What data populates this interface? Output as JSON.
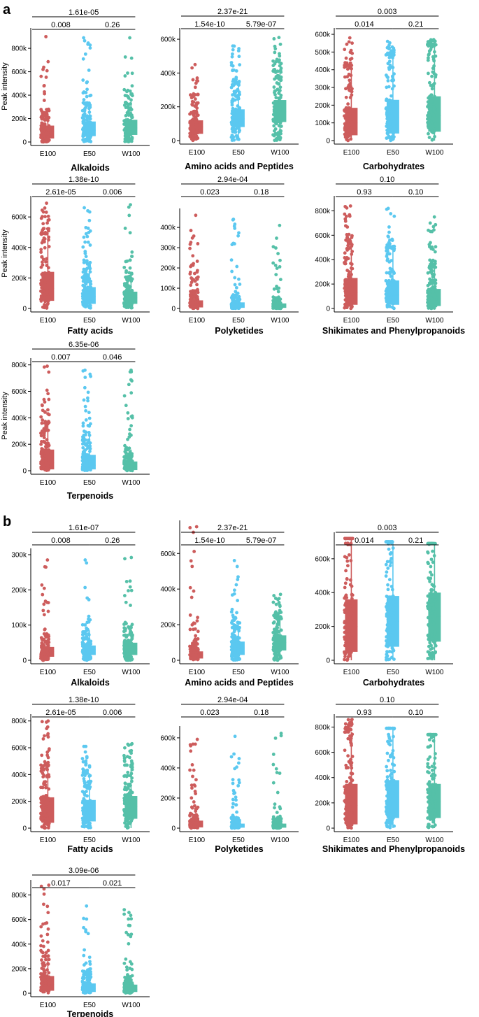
{
  "colors": {
    "E100": "#cd5c5c",
    "E50": "#5bc8f0",
    "W100": "#55c0a8"
  },
  "section_labels": [
    "a",
    "b"
  ],
  "chart_data": [
    {
      "type": "box",
      "panel": "a",
      "title": "Alkaloids",
      "ylabel": "Peak intensity",
      "categories": [
        "E100",
        "E50",
        "W100"
      ],
      "ylim": [
        0,
        950000
      ],
      "yticks": [
        0,
        200000,
        400000,
        600000,
        800000
      ],
      "ytick_labels": [
        "0",
        "200k",
        "400k",
        "600k",
        "800k"
      ],
      "boxes": [
        {
          "q1": 30000,
          "median": 90000,
          "q3": 140000,
          "whisker_high": 250000,
          "max": 900000
        },
        {
          "q1": 50000,
          "median": 100000,
          "q3": 175000,
          "whisker_high": 330000,
          "max": 890000
        },
        {
          "q1": 60000,
          "median": 120000,
          "q3": 190000,
          "whisker_high": 360000,
          "max": 890000
        }
      ],
      "comparisons": [
        {
          "pair": [
            "E100",
            "W100"
          ],
          "p": "1.61e-05"
        },
        {
          "pair": [
            "E100",
            "E50"
          ],
          "p": "0.008"
        },
        {
          "pair": [
            "E50",
            "W100"
          ],
          "p": "0.26"
        }
      ]
    },
    {
      "type": "box",
      "panel": "a",
      "title": "Amino acids and Peptides",
      "ylabel": "",
      "categories": [
        "E100",
        "E50",
        "W100"
      ],
      "ylim": [
        0,
        650000
      ],
      "yticks": [
        0,
        200000,
        400000,
        600000
      ],
      "ytick_labels": [
        "0",
        "200k",
        "400k",
        "600k"
      ],
      "boxes": [
        {
          "q1": 40000,
          "median": 80000,
          "q3": 120000,
          "whisker_high": 230000,
          "max": 450000
        },
        {
          "q1": 80000,
          "median": 130000,
          "q3": 185000,
          "whisker_high": 340000,
          "max": 560000
        },
        {
          "q1": 110000,
          "median": 170000,
          "q3": 240000,
          "whisker_high": 410000,
          "max": 610000
        }
      ],
      "comparisons": [
        {
          "pair": [
            "E100",
            "W100"
          ],
          "p": "2.37e-21"
        },
        {
          "pair": [
            "E100",
            "E50"
          ],
          "p": "1.54e-10"
        },
        {
          "pair": [
            "E50",
            "W100"
          ],
          "p": "5.79e-07"
        }
      ]
    },
    {
      "type": "box",
      "panel": "a",
      "title": "Carbohydrates",
      "ylabel": "",
      "categories": [
        "E100",
        "E50",
        "W100"
      ],
      "ylim": [
        0,
        620000
      ],
      "yticks": [
        0,
        100000,
        200000,
        300000,
        400000,
        500000,
        600000
      ],
      "ytick_labels": [
        "0",
        "100k",
        "200k",
        "300k",
        "400k",
        "500k",
        "600k"
      ],
      "boxes": [
        {
          "q1": 30000,
          "median": 100000,
          "q3": 185000,
          "whisker_high": 420000,
          "max": 580000
        },
        {
          "q1": 40000,
          "median": 130000,
          "q3": 230000,
          "whisker_high": 480000,
          "max": 560000
        },
        {
          "q1": 50000,
          "median": 140000,
          "q3": 250000,
          "whisker_high": 540000,
          "max": 570000
        }
      ],
      "comparisons": [
        {
          "pair": [
            "E100",
            "W100"
          ],
          "p": "0.003"
        },
        {
          "pair": [
            "E100",
            "E50"
          ],
          "p": "0.014"
        },
        {
          "pair": [
            "E50",
            "W100"
          ],
          "p": "0.21"
        }
      ]
    },
    {
      "type": "box",
      "panel": "a",
      "title": "Fatty acids",
      "ylabel": "Peak intensity",
      "categories": [
        "E100",
        "E50",
        "W100"
      ],
      "ylim": [
        0,
        720000
      ],
      "yticks": [
        0,
        200000,
        400000,
        600000
      ],
      "ytick_labels": [
        "0",
        "200k",
        "400k",
        "600k"
      ],
      "boxes": [
        {
          "q1": 50000,
          "median": 130000,
          "q3": 240000,
          "whisker_high": 490000,
          "max": 690000
        },
        {
          "q1": 30000,
          "median": 80000,
          "q3": 140000,
          "whisker_high": 300000,
          "max": 660000
        },
        {
          "q1": 30000,
          "median": 70000,
          "q3": 110000,
          "whisker_high": 230000,
          "max": 680000
        }
      ],
      "comparisons": [
        {
          "pair": [
            "E100",
            "W100"
          ],
          "p": "1.38e-10"
        },
        {
          "pair": [
            "E100",
            "E50"
          ],
          "p": "2.61e-05"
        },
        {
          "pair": [
            "E50",
            "W100"
          ],
          "p": "0.006"
        }
      ]
    },
    {
      "type": "box",
      "panel": "a",
      "title": "Polyketides",
      "ylabel": "",
      "categories": [
        "E100",
        "E50",
        "W100"
      ],
      "ylim": [
        0,
        480000
      ],
      "yticks": [
        0,
        100000,
        200000,
        300000,
        400000
      ],
      "ytick_labels": [
        "0",
        "100k",
        "200k",
        "300k",
        "400k"
      ],
      "boxes": [
        {
          "q1": 5000,
          "median": 20000,
          "q3": 40000,
          "whisker_high": 90000,
          "max": 460000
        },
        {
          "q1": 3000,
          "median": 12000,
          "q3": 30000,
          "whisker_high": 60000,
          "max": 440000
        },
        {
          "q1": 3000,
          "median": 12000,
          "q3": 25000,
          "whisker_high": 50000,
          "max": 410000
        }
      ],
      "comparisons": [
        {
          "pair": [
            "E100",
            "W100"
          ],
          "p": "2.94e-04"
        },
        {
          "pair": [
            "E100",
            "E50"
          ],
          "p": "0.023"
        },
        {
          "pair": [
            "E50",
            "W100"
          ],
          "p": "0.18"
        }
      ]
    },
    {
      "type": "box",
      "panel": "a",
      "title": "Shikimates and Phenylpropanoids",
      "ylabel": "",
      "categories": [
        "E100",
        "E50",
        "W100"
      ],
      "ylim": [
        0,
        900000
      ],
      "yticks": [
        0,
        200000,
        400000,
        600000,
        800000
      ],
      "ytick_labels": [
        "0",
        "200k",
        "400k",
        "600k",
        "800k"
      ],
      "boxes": [
        {
          "q1": 30000,
          "median": 130000,
          "q3": 250000,
          "whisker_high": 560000,
          "max": 840000
        },
        {
          "q1": 30000,
          "median": 110000,
          "q3": 230000,
          "whisker_high": 500000,
          "max": 820000
        },
        {
          "q1": 20000,
          "median": 80000,
          "q3": 160000,
          "whisker_high": 360000,
          "max": 750000
        }
      ],
      "comparisons": [
        {
          "pair": [
            "E100",
            "W100"
          ],
          "p": "0.10"
        },
        {
          "pair": [
            "E100",
            "E50"
          ],
          "p": "0.93"
        },
        {
          "pair": [
            "E50",
            "W100"
          ],
          "p": "0.10"
        }
      ]
    },
    {
      "type": "box",
      "panel": "a",
      "title": "Terpenoids",
      "ylabel": "Peak intensity",
      "categories": [
        "E100",
        "E50",
        "W100"
      ],
      "ylim": [
        0,
        830000
      ],
      "yticks": [
        0,
        200000,
        400000,
        600000,
        800000
      ],
      "ytick_labels": [
        "0",
        "200k",
        "400k",
        "600k",
        "800k"
      ],
      "boxes": [
        {
          "q1": 10000,
          "median": 60000,
          "q3": 160000,
          "whisker_high": 360000,
          "max": 790000
        },
        {
          "q1": 10000,
          "median": 40000,
          "q3": 120000,
          "whisker_high": 270000,
          "max": 760000
        },
        {
          "q1": 5000,
          "median": 30000,
          "q3": 70000,
          "whisker_high": 160000,
          "max": 760000
        }
      ],
      "comparisons": [
        {
          "pair": [
            "E100",
            "W100"
          ],
          "p": "6.35e-06"
        },
        {
          "pair": [
            "E100",
            "E50"
          ],
          "p": "0.007"
        },
        {
          "pair": [
            "E50",
            "W100"
          ],
          "p": "0.046"
        }
      ]
    },
    {
      "type": "box",
      "panel": "b",
      "title": "Alkaloids",
      "ylabel": "",
      "categories": [
        "E100",
        "E50",
        "W100"
      ],
      "ylim": [
        0,
        310000
      ],
      "yticks": [
        0,
        100000,
        200000,
        300000
      ],
      "ytick_labels": [
        "0",
        "100k",
        "200k",
        "300k"
      ],
      "boxes": [
        {
          "q1": 10000,
          "median": 25000,
          "q3": 38000,
          "whisker_high": 75000,
          "max": 285000
        },
        {
          "q1": 15000,
          "median": 30000,
          "q3": 42000,
          "whisker_high": 85000,
          "max": 285000
        },
        {
          "q1": 15000,
          "median": 32000,
          "q3": 50000,
          "whisker_high": 95000,
          "max": 292000
        }
      ],
      "comparisons": [
        {
          "pair": [
            "E100",
            "W100"
          ],
          "p": "1.61e-07"
        },
        {
          "pair": [
            "E100",
            "E50"
          ],
          "p": "0.008"
        },
        {
          "pair": [
            "E50",
            "W100"
          ],
          "p": "0.26"
        }
      ]
    },
    {
      "type": "box",
      "panel": "b",
      "title": "Amino acids and Peptides",
      "ylabel": "",
      "categories": [
        "E100",
        "E50",
        "W100"
      ],
      "ylim": [
        0,
        770000
      ],
      "yticks": [
        0,
        200000,
        400000,
        600000
      ],
      "ytick_labels": [
        "0",
        "200k",
        "400k",
        "600k"
      ],
      "boxes": [
        {
          "q1": 10000,
          "median": 30000,
          "q3": 50000,
          "whisker_high": 100000,
          "max": 750000
        },
        {
          "q1": 30000,
          "median": 70000,
          "q3": 105000,
          "whisker_high": 210000,
          "max": 560000
        },
        {
          "q1": 55000,
          "median": 100000,
          "q3": 140000,
          "whisker_high": 250000,
          "max": 370000
        }
      ],
      "comparisons": [
        {
          "pair": [
            "E100",
            "W100"
          ],
          "p": "2.37e-21"
        },
        {
          "pair": [
            "E100",
            "E50"
          ],
          "p": "1.54e-10"
        },
        {
          "pair": [
            "E50",
            "W100"
          ],
          "p": "5.79e-07"
        }
      ]
    },
    {
      "type": "box",
      "panel": "b",
      "title": "Carbohydrates",
      "ylabel": "",
      "categories": [
        "E100",
        "E50",
        "W100"
      ],
      "ylim": [
        0,
        740000
      ],
      "yticks": [
        0,
        200000,
        400000,
        600000
      ],
      "ytick_labels": [
        "0",
        "200k",
        "400k",
        "600k"
      ],
      "boxes": [
        {
          "q1": 50000,
          "median": 200000,
          "q3": 360000,
          "whisker_high": 720000,
          "max": 720000
        },
        {
          "q1": 80000,
          "median": 230000,
          "q3": 380000,
          "whisker_high": 700000,
          "max": 700000
        },
        {
          "q1": 110000,
          "median": 260000,
          "q3": 400000,
          "whisker_high": 690000,
          "max": 690000
        }
      ],
      "comparisons": [
        {
          "pair": [
            "E100",
            "W100"
          ],
          "p": "0.003"
        },
        {
          "pair": [
            "E100",
            "E50"
          ],
          "p": "0.014"
        },
        {
          "pair": [
            "E50",
            "W100"
          ],
          "p": "0.21"
        }
      ]
    },
    {
      "type": "box",
      "panel": "b",
      "title": "Fatty acids",
      "ylabel": "",
      "categories": [
        "E100",
        "E50",
        "W100"
      ],
      "ylim": [
        0,
        830000
      ],
      "yticks": [
        0,
        200000,
        400000,
        600000,
        800000
      ],
      "ytick_labels": [
        "0",
        "200k",
        "400k",
        "600k",
        "800k"
      ],
      "boxes": [
        {
          "q1": 40000,
          "median": 120000,
          "q3": 230000,
          "whisker_high": 470000,
          "max": 800000
        },
        {
          "q1": 50000,
          "median": 130000,
          "q3": 210000,
          "whisker_high": 410000,
          "max": 610000
        },
        {
          "q1": 70000,
          "median": 160000,
          "q3": 240000,
          "whisker_high": 470000,
          "max": 630000
        }
      ],
      "comparisons": [
        {
          "pair": [
            "E100",
            "W100"
          ],
          "p": "1.38e-10"
        },
        {
          "pair": [
            "E100",
            "E50"
          ],
          "p": "2.61e-05"
        },
        {
          "pair": [
            "E50",
            "W100"
          ],
          "p": "0.006"
        }
      ]
    },
    {
      "type": "box",
      "panel": "b",
      "title": "Polyketides",
      "ylabel": "",
      "categories": [
        "E100",
        "E50",
        "W100"
      ],
      "ylim": [
        0,
        660000
      ],
      "yticks": [
        0,
        200000,
        400000,
        600000
      ],
      "ytick_labels": [
        "0",
        "200k",
        "400k",
        "600k"
      ],
      "boxes": [
        {
          "q1": 5000,
          "median": 20000,
          "q3": 50000,
          "whisker_high": 100000,
          "max": 590000
        },
        {
          "q1": 3000,
          "median": 15000,
          "q3": 30000,
          "whisker_high": 70000,
          "max": 610000
        },
        {
          "q1": 3000,
          "median": 12000,
          "q3": 30000,
          "whisker_high": 60000,
          "max": 630000
        }
      ],
      "comparisons": [
        {
          "pair": [
            "E100",
            "W100"
          ],
          "p": "2.94e-04"
        },
        {
          "pair": [
            "E100",
            "E50"
          ],
          "p": "0.023"
        },
        {
          "pair": [
            "E50",
            "W100"
          ],
          "p": "0.18"
        }
      ]
    },
    {
      "type": "box",
      "panel": "b",
      "title": "Shikimates and Phenylpropanoids",
      "ylabel": "",
      "categories": [
        "E100",
        "E50",
        "W100"
      ],
      "ylim": [
        0,
        880000
      ],
      "yticks": [
        0,
        200000,
        400000,
        600000,
        800000
      ],
      "ytick_labels": [
        "0",
        "200k",
        "400k",
        "600k",
        "800k"
      ],
      "boxes": [
        {
          "q1": 30000,
          "median": 180000,
          "q3": 350000,
          "whisker_high": 760000,
          "max": 860000
        },
        {
          "q1": 80000,
          "median": 230000,
          "q3": 380000,
          "whisker_high": 790000,
          "max": 790000
        },
        {
          "q1": 80000,
          "median": 210000,
          "q3": 350000,
          "whisker_high": 740000,
          "max": 740000
        }
      ],
      "comparisons": [
        {
          "pair": [
            "E100",
            "W100"
          ],
          "p": "0.10"
        },
        {
          "pair": [
            "E100",
            "E50"
          ],
          "p": "0.93"
        },
        {
          "pair": [
            "E50",
            "W100"
          ],
          "p": "0.10"
        }
      ]
    },
    {
      "type": "box",
      "panel": "b",
      "title": "Terpenoids",
      "ylabel": "",
      "categories": [
        "E100",
        "E50",
        "W100"
      ],
      "ylim": [
        0,
        900000
      ],
      "yticks": [
        0,
        200000,
        400000,
        600000,
        800000
      ],
      "ytick_labels": [
        "0",
        "200k",
        "400k",
        "600k",
        "800k"
      ],
      "boxes": [
        {
          "q1": 20000,
          "median": 70000,
          "q3": 140000,
          "whisker_high": 300000,
          "max": 880000
        },
        {
          "q1": 10000,
          "median": 40000,
          "q3": 80000,
          "whisker_high": 170000,
          "max": 710000
        },
        {
          "q1": 10000,
          "median": 30000,
          "q3": 70000,
          "whisker_high": 140000,
          "max": 680000
        }
      ],
      "comparisons": [
        {
          "pair": [
            "E100",
            "W100"
          ],
          "p": "3.09e-06"
        },
        {
          "pair": [
            "E100",
            "E50"
          ],
          "p": "0.017"
        },
        {
          "pair": [
            "E50",
            "W100"
          ],
          "p": "0.021"
        }
      ]
    }
  ]
}
